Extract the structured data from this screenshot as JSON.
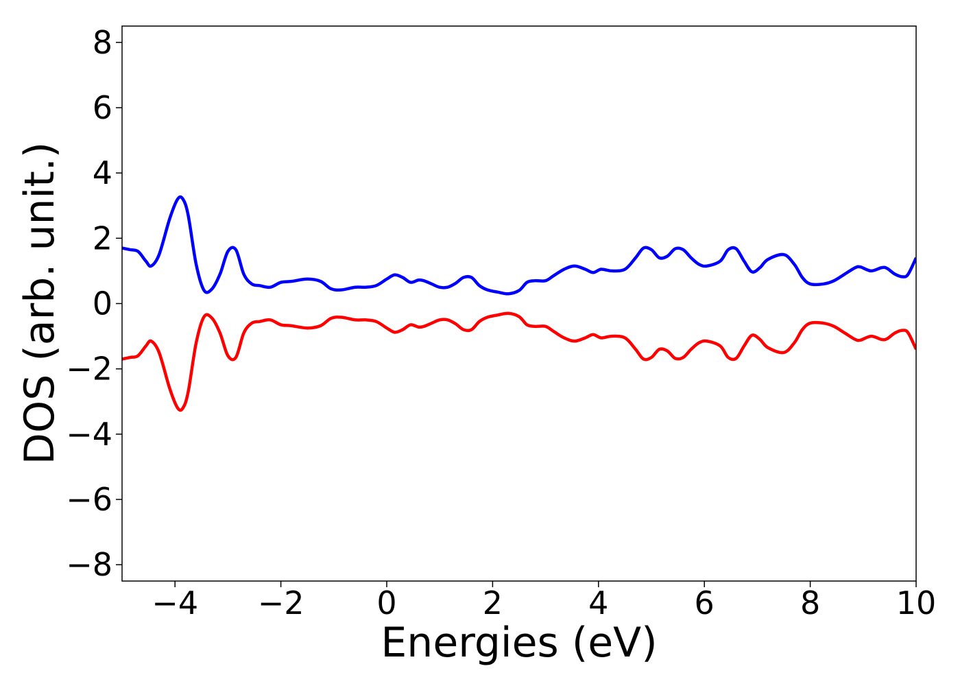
{
  "chart_data": {
    "type": "line",
    "xlabel": "Energies (eV)",
    "ylabel": "DOS (arb. unit.)",
    "xlim": [
      -5,
      10
    ],
    "ylim": [
      -8.5,
      8.5
    ],
    "xticks": [
      -4,
      -2,
      0,
      2,
      4,
      6,
      8,
      10
    ],
    "xtick_labels": [
      "−4",
      "−2",
      "0",
      "2",
      "4",
      "6",
      "8",
      "10"
    ],
    "yticks": [
      8,
      6,
      4,
      2,
      0,
      -2,
      -4,
      -6,
      -8
    ],
    "ytick_labels": [
      "8",
      "6",
      "4",
      "2",
      "0",
      "−2",
      "−4",
      "−6",
      "−8"
    ],
    "grid": false,
    "legend": "none",
    "colors": {
      "upper": "#0000ff",
      "lower": "#ff0000"
    },
    "series": [
      {
        "color": "#0000ff",
        "x": [
          -5.0,
          -4.85,
          -4.7,
          -4.55,
          -4.45,
          -4.3,
          -4.1,
          -3.95,
          -3.85,
          -3.75,
          -3.6,
          -3.45,
          -3.3,
          -3.15,
          -3.0,
          -2.85,
          -2.7,
          -2.55,
          -2.4,
          -2.2,
          -2.0,
          -1.8,
          -1.5,
          -1.25,
          -1.05,
          -0.85,
          -0.6,
          -0.4,
          -0.2,
          0.0,
          0.15,
          0.3,
          0.45,
          0.6,
          0.7,
          0.85,
          1.0,
          1.15,
          1.3,
          1.45,
          1.6,
          1.75,
          1.9,
          2.1,
          2.3,
          2.5,
          2.65,
          2.8,
          3.0,
          3.15,
          3.35,
          3.55,
          3.75,
          3.9,
          4.05,
          4.25,
          4.5,
          4.7,
          4.85,
          5.0,
          5.15,
          5.3,
          5.45,
          5.6,
          5.75,
          5.9,
          6.05,
          6.3,
          6.45,
          6.6,
          6.75,
          6.9,
          7.05,
          7.2,
          7.5,
          7.7,
          7.85,
          8.0,
          8.25,
          8.45,
          8.65,
          8.85,
          8.95,
          9.15,
          9.35,
          9.45,
          9.6,
          9.75,
          9.85,
          10.0
        ],
        "values": [
          1.7,
          1.65,
          1.6,
          1.3,
          1.15,
          1.5,
          2.6,
          3.2,
          3.2,
          2.7,
          1.2,
          0.4,
          0.45,
          0.9,
          1.6,
          1.65,
          0.9,
          0.6,
          0.55,
          0.5,
          0.65,
          0.68,
          0.75,
          0.68,
          0.45,
          0.42,
          0.5,
          0.5,
          0.55,
          0.75,
          0.88,
          0.8,
          0.65,
          0.72,
          0.7,
          0.6,
          0.5,
          0.5,
          0.62,
          0.8,
          0.8,
          0.55,
          0.42,
          0.35,
          0.3,
          0.4,
          0.65,
          0.7,
          0.7,
          0.85,
          1.05,
          1.15,
          1.05,
          0.95,
          1.05,
          1.0,
          1.05,
          1.4,
          1.7,
          1.65,
          1.4,
          1.45,
          1.68,
          1.65,
          1.4,
          1.2,
          1.15,
          1.3,
          1.65,
          1.68,
          1.3,
          0.97,
          1.1,
          1.35,
          1.5,
          1.2,
          0.8,
          0.6,
          0.6,
          0.7,
          0.9,
          1.1,
          1.12,
          1.0,
          1.1,
          1.08,
          0.9,
          0.82,
          0.9,
          1.4
        ]
      },
      {
        "color": "#ff0000",
        "x": [
          -5.0,
          -4.85,
          -4.7,
          -4.55,
          -4.45,
          -4.3,
          -4.1,
          -3.95,
          -3.85,
          -3.75,
          -3.6,
          -3.45,
          -3.3,
          -3.15,
          -3.0,
          -2.85,
          -2.7,
          -2.55,
          -2.4,
          -2.2,
          -2.0,
          -1.8,
          -1.5,
          -1.25,
          -1.05,
          -0.85,
          -0.6,
          -0.4,
          -0.2,
          0.0,
          0.15,
          0.3,
          0.45,
          0.6,
          0.7,
          0.85,
          1.0,
          1.15,
          1.3,
          1.45,
          1.6,
          1.75,
          1.9,
          2.1,
          2.3,
          2.5,
          2.65,
          2.8,
          3.0,
          3.15,
          3.35,
          3.55,
          3.75,
          3.9,
          4.05,
          4.25,
          4.5,
          4.7,
          4.85,
          5.0,
          5.15,
          5.3,
          5.45,
          5.6,
          5.75,
          5.9,
          6.05,
          6.3,
          6.45,
          6.6,
          6.75,
          6.9,
          7.05,
          7.2,
          7.5,
          7.7,
          7.85,
          8.0,
          8.25,
          8.45,
          8.65,
          8.85,
          8.95,
          9.15,
          9.35,
          9.45,
          9.6,
          9.75,
          9.85,
          10.0
        ],
        "values": [
          -1.7,
          -1.65,
          -1.6,
          -1.3,
          -1.15,
          -1.5,
          -2.6,
          -3.2,
          -3.2,
          -2.7,
          -1.2,
          -0.4,
          -0.45,
          -0.9,
          -1.6,
          -1.65,
          -0.9,
          -0.6,
          -0.55,
          -0.5,
          -0.65,
          -0.68,
          -0.75,
          -0.68,
          -0.45,
          -0.42,
          -0.5,
          -0.5,
          -0.55,
          -0.75,
          -0.88,
          -0.8,
          -0.65,
          -0.72,
          -0.7,
          -0.6,
          -0.5,
          -0.5,
          -0.62,
          -0.8,
          -0.8,
          -0.55,
          -0.42,
          -0.35,
          -0.3,
          -0.4,
          -0.65,
          -0.7,
          -0.7,
          -0.85,
          -1.05,
          -1.15,
          -1.05,
          -0.95,
          -1.05,
          -1.0,
          -1.05,
          -1.4,
          -1.7,
          -1.65,
          -1.4,
          -1.45,
          -1.68,
          -1.65,
          -1.4,
          -1.2,
          -1.15,
          -1.3,
          -1.65,
          -1.68,
          -1.3,
          -0.97,
          -1.1,
          -1.35,
          -1.5,
          -1.2,
          -0.8,
          -0.6,
          -0.6,
          -0.7,
          -0.9,
          -1.1,
          -1.12,
          -1.0,
          -1.1,
          -1.08,
          -0.9,
          -0.82,
          -0.9,
          -1.4
        ]
      }
    ]
  }
}
